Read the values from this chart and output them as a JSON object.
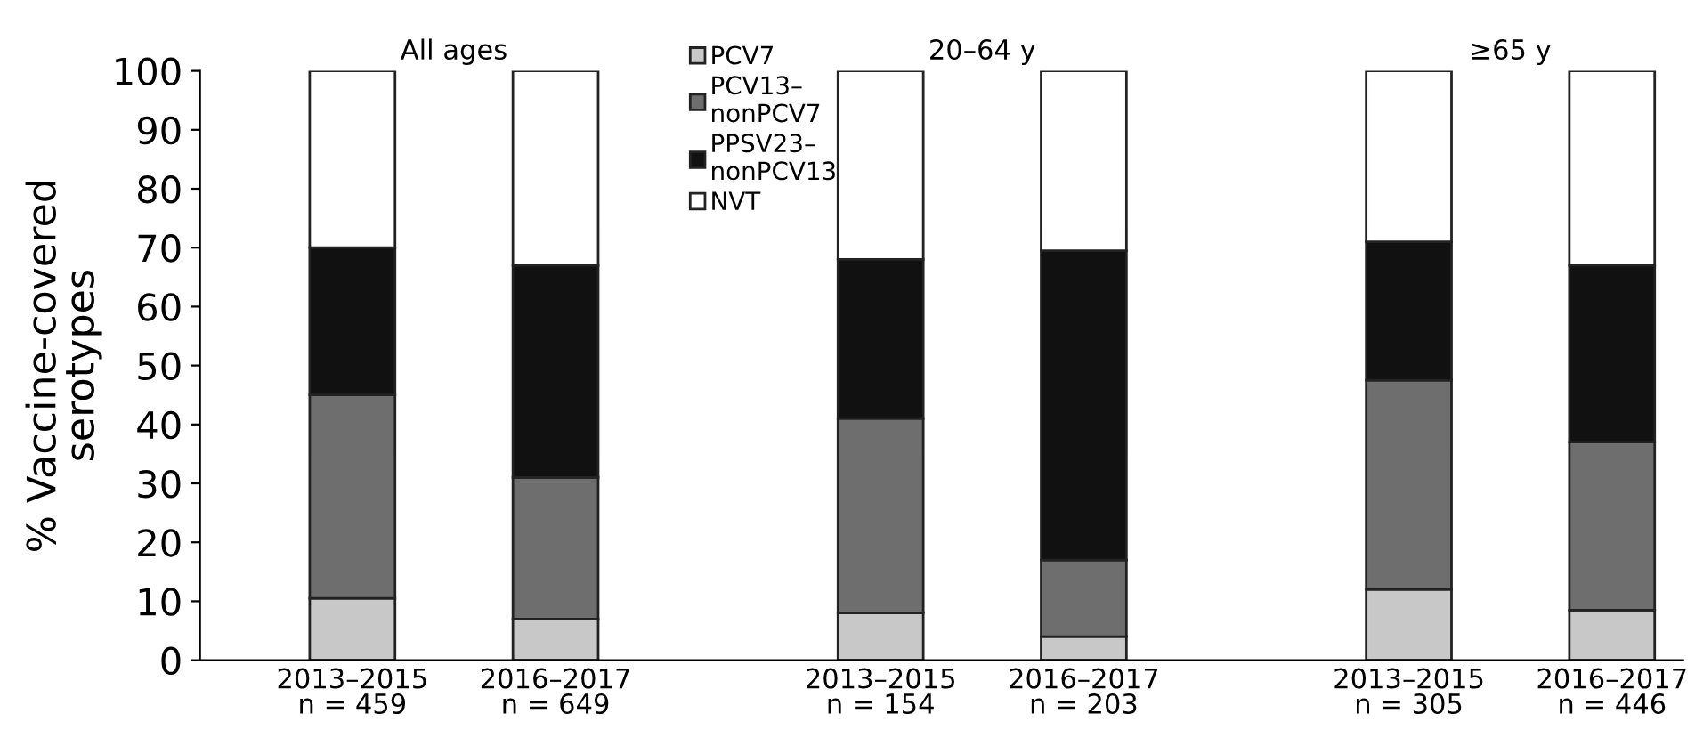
{
  "chart_data": {
    "type": "bar",
    "stacked": true,
    "ylabel": "% Vaccine-covered\nserotypes",
    "categories": [
      "2013–2015\nn = 459",
      "2016–2017\nn = 649",
      "2013–2015\nn = 154",
      "2016–2017\nn = 203",
      "2013–2015\nn = 305",
      "2016–2017\nn = 446"
    ],
    "series": [
      {
        "name": "PCV7",
        "color": "#c8c8c8",
        "values": [
          10.5,
          7,
          8,
          4,
          12,
          8.5
        ]
      },
      {
        "name": "PCV13–\nnonPCV7",
        "color": "#6e6e6e",
        "values": [
          34.5,
          24,
          33,
          13,
          35.5,
          28.5
        ]
      },
      {
        "name": "PPSV23–\nnonPCV13",
        "color": "#111111",
        "values": [
          25,
          36,
          27,
          52.5,
          23.5,
          30
        ]
      },
      {
        "name": "NVT",
        "color": "#ffffff",
        "values": [
          30,
          33,
          32,
          30.5,
          29,
          33
        ]
      }
    ],
    "annotations": [
      "All ages",
      "20–64 y",
      "≥65 y"
    ],
    "ylim": [
      0,
      100
    ],
    "yticks": [
      0,
      10,
      20,
      30,
      40,
      50,
      60,
      70,
      80,
      90,
      100
    ],
    "grid": false,
    "legend": "top"
  }
}
